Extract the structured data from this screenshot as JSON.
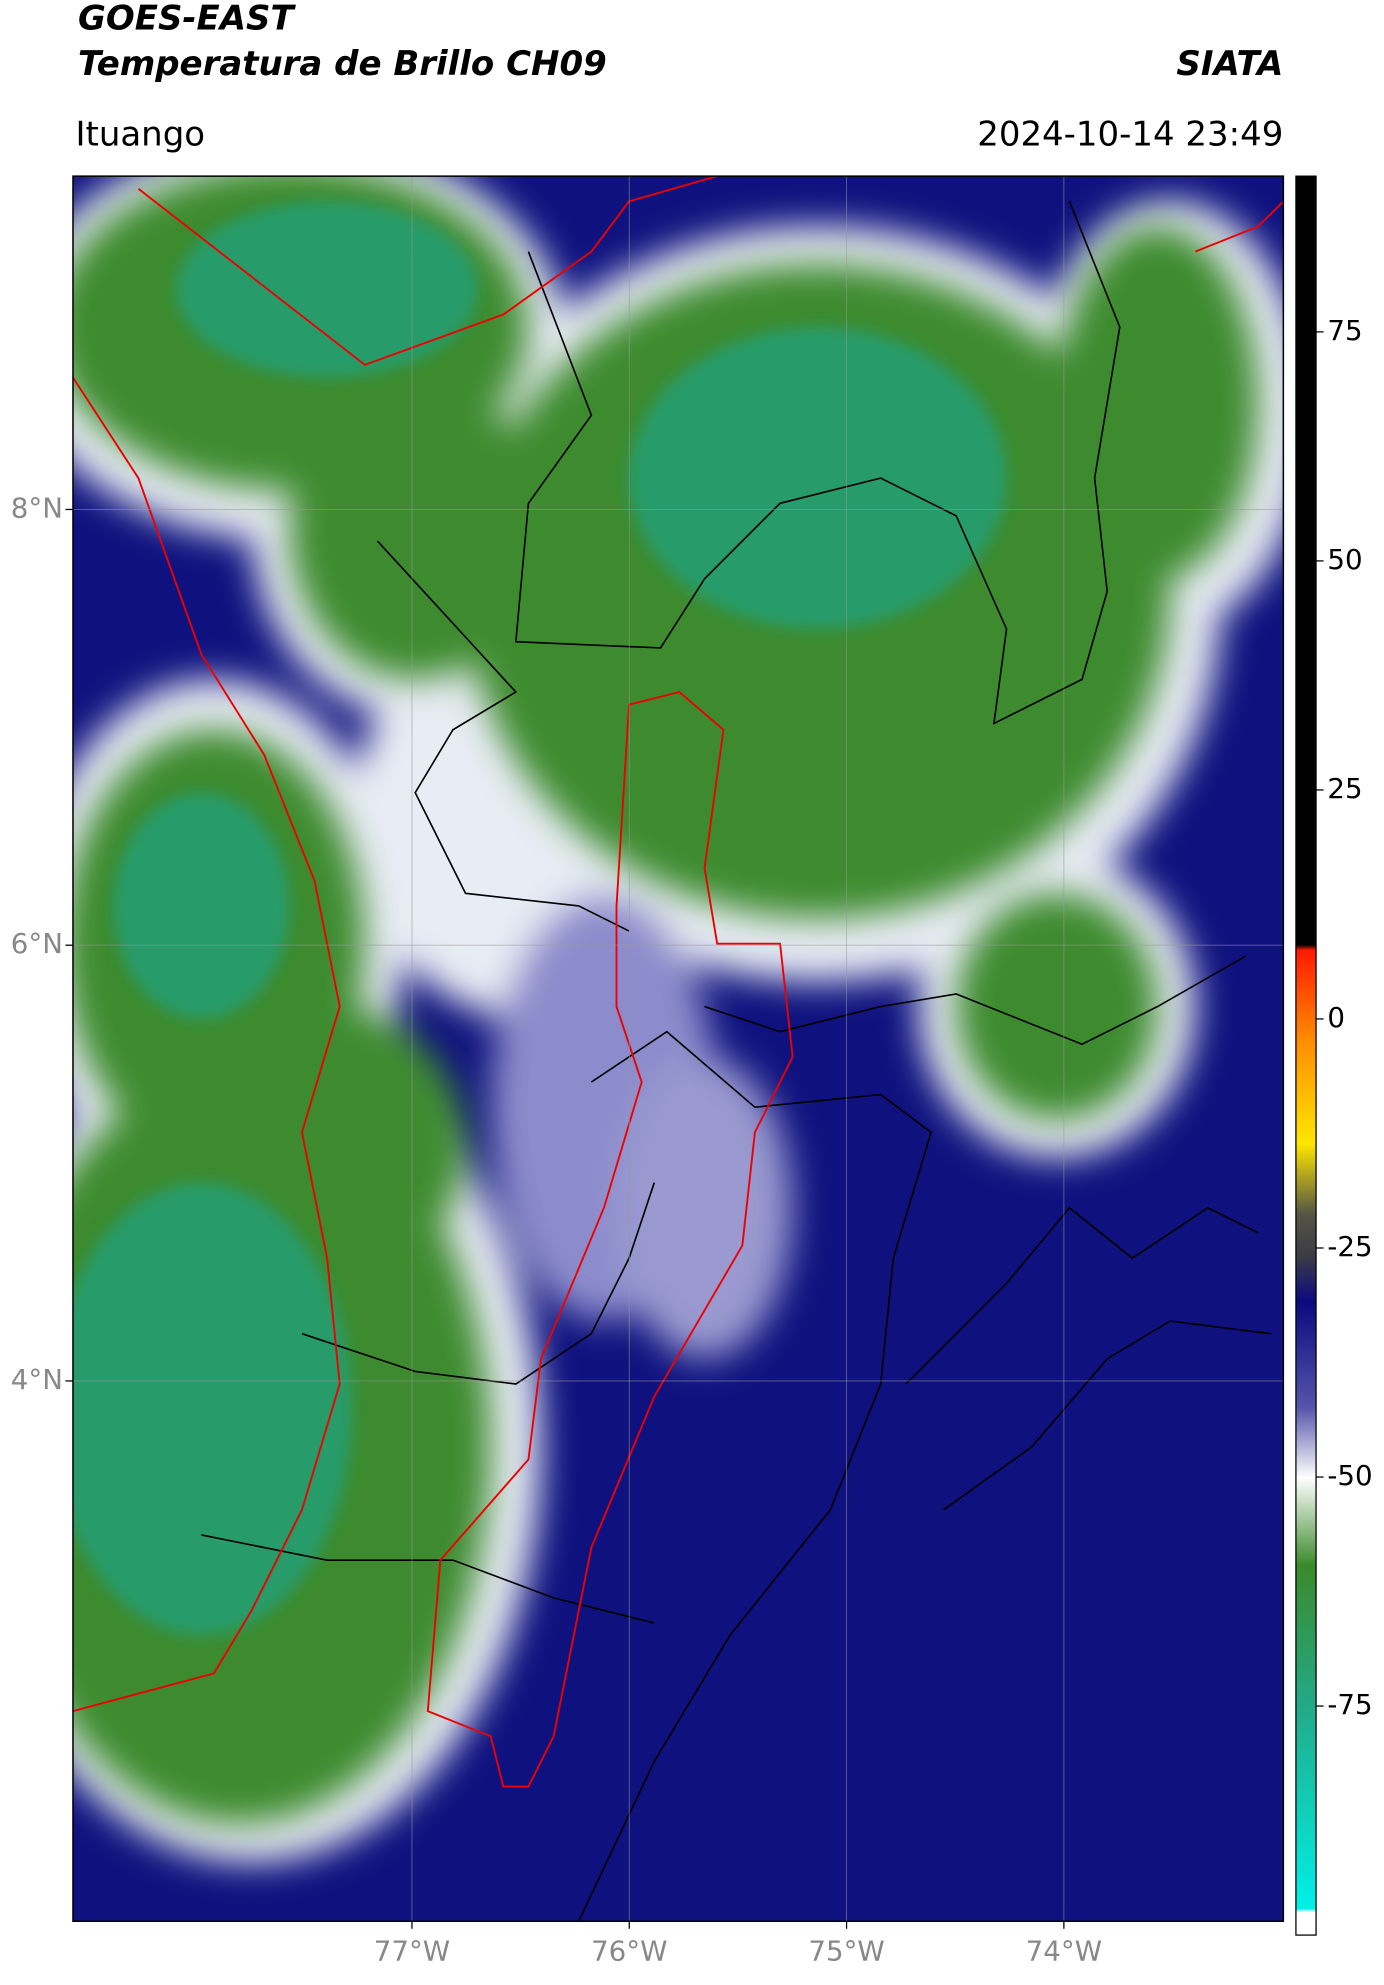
{
  "header": {
    "title": "GOES-EAST",
    "subtitle": "Temperatura de Brillo CH09",
    "brand": "SIATA",
    "location": "Ituango",
    "timestamp": "2024-10-14 23:49"
  },
  "map": {
    "xlim": [
      -78.56,
      -72.99
    ],
    "ylim": [
      1.52,
      9.53
    ],
    "xticks": [
      {
        "value": -77,
        "label": "77°W"
      },
      {
        "value": -76,
        "label": "76°W"
      },
      {
        "value": -75,
        "label": "75°W"
      },
      {
        "value": -74,
        "label": "74°W"
      }
    ],
    "yticks": [
      {
        "value": 8,
        "label": "8°N"
      },
      {
        "value": 6,
        "label": "6°N"
      },
      {
        "value": 4,
        "label": "4°N"
      }
    ],
    "grid": true
  },
  "colorbar": {
    "lim": [
      -100,
      92
    ],
    "ticks": [
      75,
      50,
      25,
      0,
      -25,
      -50,
      -75
    ]
  }
}
